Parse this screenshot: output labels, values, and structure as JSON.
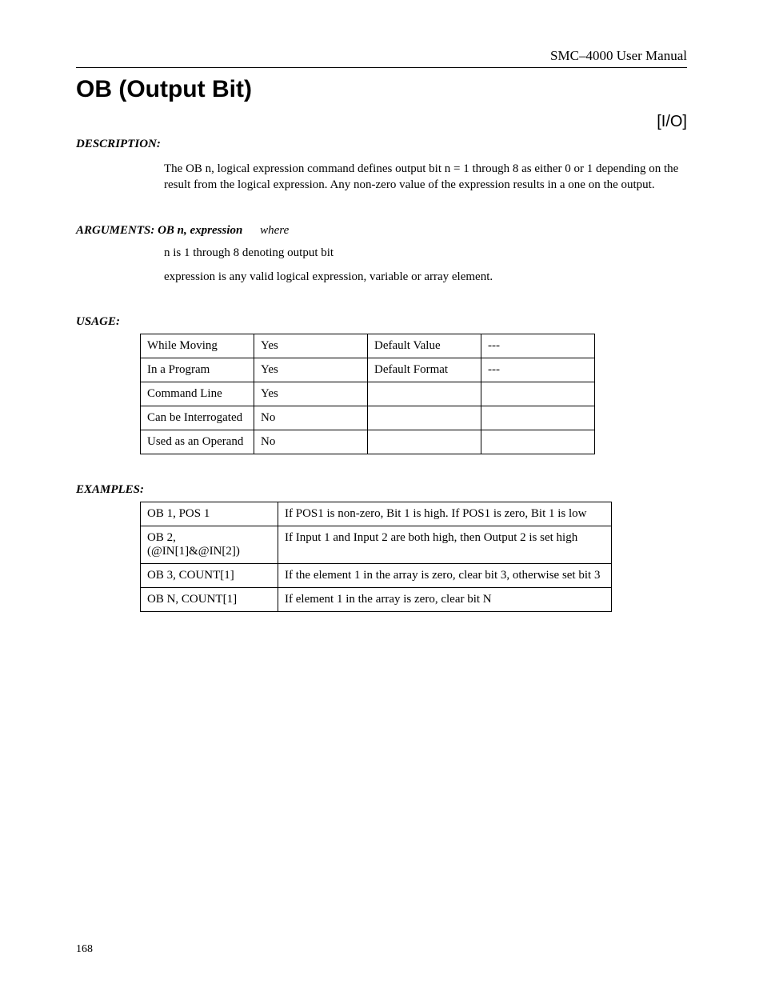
{
  "header": {
    "manual_title": "SMC–4000 User Manual"
  },
  "command": {
    "title": "OB (Output Bit)",
    "category_tag": "[I/O]"
  },
  "description": {
    "label": "DESCRIPTION:",
    "text": "The OB n, logical expression command defines output bit n = 1 through 8 as either 0 or 1 depending on the result from the logical expression.  Any non-zero value of the expression results in a one on the output."
  },
  "arguments": {
    "label_prefix": "ARGUMENTS:  OB n, expression",
    "where": "where",
    "lines": [
      "n is 1 through 8 denoting output bit",
      "expression is any valid logical expression, variable or array element."
    ]
  },
  "usage": {
    "label": "USAGE:",
    "columns": [
      "c1",
      "c2",
      "c3",
      "c4"
    ],
    "rows": [
      [
        "While Moving",
        "Yes",
        "Default Value",
        "---"
      ],
      [
        "In a Program",
        "Yes",
        "Default Format",
        "---"
      ],
      [
        "Command Line",
        "Yes",
        "",
        ""
      ],
      [
        "Can be Interrogated",
        "No",
        "",
        ""
      ],
      [
        "Used as an Operand",
        "No",
        "",
        ""
      ]
    ]
  },
  "examples": {
    "label": "EXAMPLES:",
    "rows": [
      [
        "OB 1, POS 1",
        "If POS1 is non-zero, Bit 1 is high.  If POS1 is zero, Bit 1 is low"
      ],
      [
        "OB 2, (@IN[1]&@IN[2])",
        "If Input 1 and Input 2 are both high, then Output 2 is set high"
      ],
      [
        "OB 3, COUNT[1]",
        "If the element 1 in the array is zero, clear bit 3, otherwise set bit 3"
      ],
      [
        "OB N, COUNT[1]",
        "If element 1 in the array is zero, clear bit N"
      ]
    ]
  },
  "footer": {
    "page_number": "168"
  },
  "style": {
    "font_body": "Times New Roman",
    "font_heading": "Arial",
    "text_color": "#000000",
    "background_color": "#ffffff",
    "rule_color": "#000000"
  }
}
